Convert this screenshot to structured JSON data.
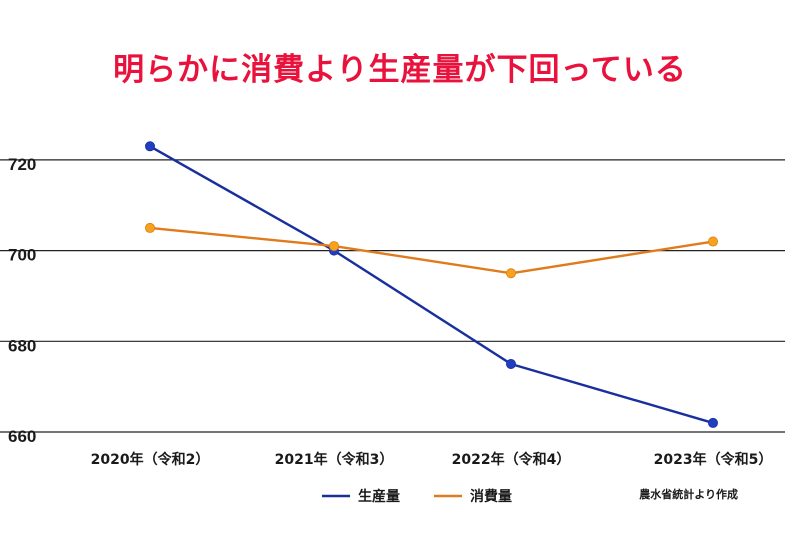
{
  "chart_data": {
    "type": "line",
    "title": "明らかに消費より生産量が下回っている",
    "categories": [
      "2020年（令和2）",
      "2021年（令和3）",
      "2022年（令和4）",
      "2023年（令和5）"
    ],
    "series": [
      {
        "name": "生産量",
        "values": [
          723,
          700,
          675,
          662
        ],
        "color": "#1a2f9e"
      },
      {
        "name": "消費量",
        "values": [
          705,
          701,
          695,
          702
        ],
        "color": "#e07b1c"
      }
    ],
    "yticks": [
      660,
      680,
      700,
      720
    ],
    "ylim": [
      660,
      730
    ],
    "grid": true,
    "legend_position": "bottom",
    "marker_colors": {
      "生産量": "#1f3fc0",
      "消費量": "#f4a31a"
    },
    "source": "農水省統計より作成"
  }
}
